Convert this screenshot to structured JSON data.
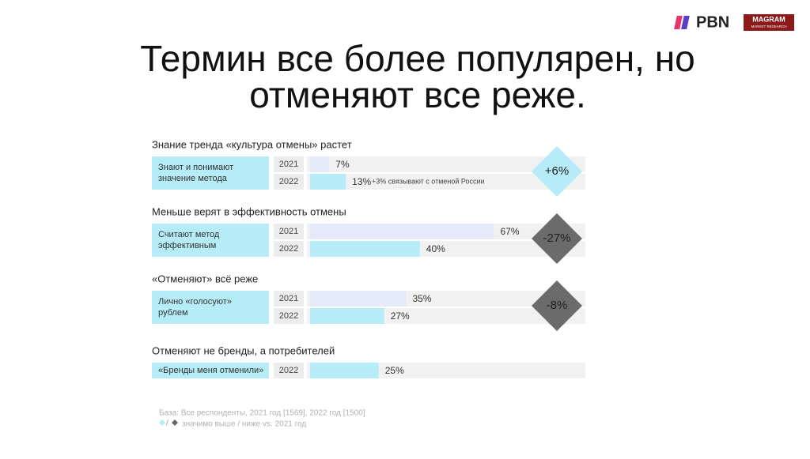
{
  "logos": {
    "pbn": "PBN",
    "magram": "MAGRAM",
    "magram_sub": "MARKET RESEARCH"
  },
  "title": [
    "Термин все более популярен, но",
    "отменяют все реже."
  ],
  "scale_max": 100,
  "sections": [
    {
      "title": "Знание тренда «культура отмены» растет",
      "label": [
        "Знают и понимают",
        "значение метода"
      ],
      "rows": [
        {
          "year": "2021",
          "value": 7,
          "value_label": "7%"
        },
        {
          "year": "2022",
          "value": 13,
          "value_label": "13%",
          "note": "+3% связывают с отменой России"
        }
      ],
      "change": "+6%",
      "direction": "up"
    },
    {
      "title": "Меньше верят в эффективность отмены",
      "label": [
        "Считают метод",
        "эффективным"
      ],
      "rows": [
        {
          "year": "2021",
          "value": 67,
          "value_label": "67%"
        },
        {
          "year": "2022",
          "value": 40,
          "value_label": "40%"
        }
      ],
      "change": "-27%",
      "direction": "down"
    },
    {
      "title": "«Отменяют» всё реже",
      "label": [
        "Лично «голосуют»",
        "рублем"
      ],
      "rows": [
        {
          "year": "2021",
          "value": 35,
          "value_label": "35%"
        },
        {
          "year": "2022",
          "value": 27,
          "value_label": "27%"
        }
      ],
      "change": "-8%",
      "direction": "down"
    },
    {
      "title": "Отменяют не бренды, а потребителей",
      "label": [
        "«Бренды меня отменили»"
      ],
      "rows": [
        {
          "year": "2022",
          "value": 25,
          "value_label": "25%"
        }
      ]
    }
  ],
  "footer": {
    "base": "База: Все респонденты, 2021 год [1569], 2022 год [1500]",
    "slash": "/",
    "legend": "значимо выше / ниже vs. 2021 год"
  }
}
